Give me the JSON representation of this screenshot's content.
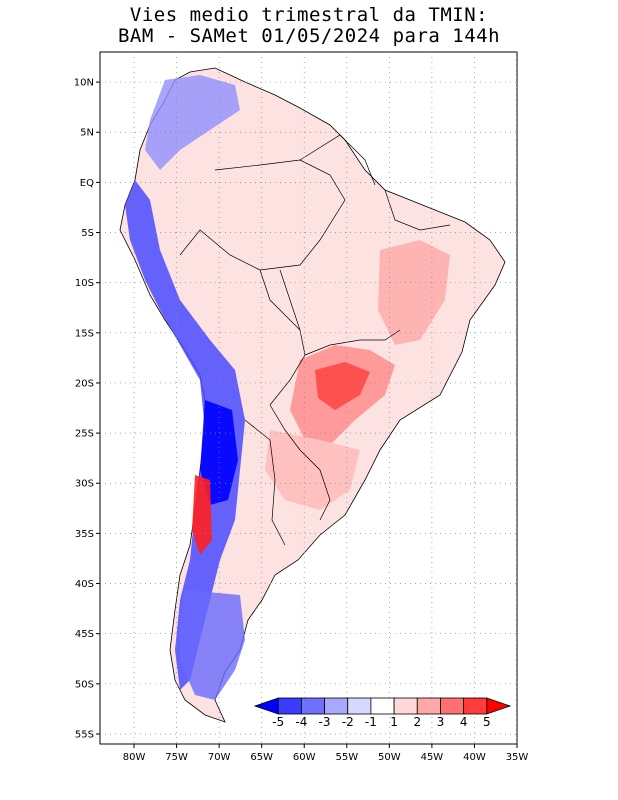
{
  "title": {
    "line1": "Vies medio trimestral da TMIN:",
    "line2": "BAM - SAMet 01/05/2024  para 144h"
  },
  "map": {
    "lon_range": [
      -84,
      -35
    ],
    "lat_range": [
      -56,
      13
    ],
    "lat_ticks": [
      {
        "value": 10,
        "label": "10N"
      },
      {
        "value": 5,
        "label": "5N"
      },
      {
        "value": 0,
        "label": "EQ"
      },
      {
        "value": -5,
        "label": "5S"
      },
      {
        "value": -10,
        "label": "10S"
      },
      {
        "value": -15,
        "label": "15S"
      },
      {
        "value": -20,
        "label": "20S"
      },
      {
        "value": -25,
        "label": "25S"
      },
      {
        "value": -30,
        "label": "30S"
      },
      {
        "value": -35,
        "label": "35S"
      },
      {
        "value": -40,
        "label": "40S"
      },
      {
        "value": -45,
        "label": "45S"
      },
      {
        "value": -50,
        "label": "50S"
      },
      {
        "value": -55,
        "label": "55S"
      }
    ],
    "lon_ticks": [
      {
        "value": -80,
        "label": "80W"
      },
      {
        "value": -75,
        "label": "75W"
      },
      {
        "value": -70,
        "label": "70W"
      },
      {
        "value": -65,
        "label": "65W"
      },
      {
        "value": -60,
        "label": "60W"
      },
      {
        "value": -55,
        "label": "55W"
      },
      {
        "value": -50,
        "label": "50W"
      },
      {
        "value": -45,
        "label": "45W"
      },
      {
        "value": -40,
        "label": "40W"
      },
      {
        "value": -35,
        "label": "35W"
      }
    ],
    "grid": true
  },
  "colorbar": {
    "labels": [
      "-5",
      "-4",
      "-3",
      "-2",
      "-1",
      "1",
      "2",
      "3",
      "4",
      "5"
    ],
    "colors": [
      "#0000ff",
      "#3c3cff",
      "#7070ff",
      "#a8a8ff",
      "#d8d8ff",
      "#ffffff",
      "#ffd8d8",
      "#ffa8a8",
      "#ff7070",
      "#ff3c3c",
      "#ff0000"
    ]
  }
}
